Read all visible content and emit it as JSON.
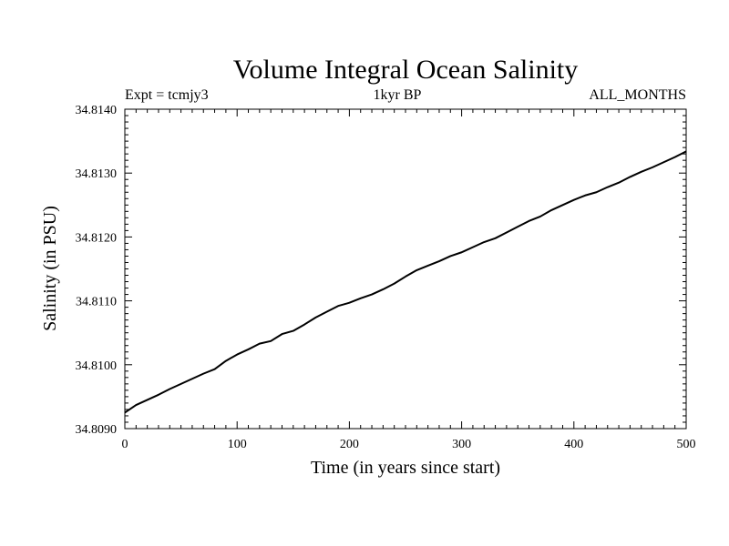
{
  "chart_data": {
    "type": "line",
    "title": "Volume Integral Ocean Salinity",
    "subtitle_left": "Expt = tcmjy3",
    "subtitle_center": "1kyr BP",
    "subtitle_right": "ALL_MONTHS",
    "xlabel": "Time (in years since start)",
    "ylabel": "Salinity (in PSU)",
    "xlim": [
      0,
      500
    ],
    "ylim": [
      34.809,
      34.814
    ],
    "xticks": [
      0,
      100,
      200,
      300,
      400,
      500
    ],
    "xtick_labels": [
      "0",
      "100",
      "200",
      "300",
      "400",
      "500"
    ],
    "yticks": [
      34.809,
      34.81,
      34.811,
      34.812,
      34.813,
      34.814
    ],
    "ytick_labels": [
      "34.8090",
      "34.8100",
      "34.8110",
      "34.8120",
      "34.8130",
      "34.8140"
    ],
    "grid": false,
    "series": [
      {
        "color": "#000000",
        "x": [
          0,
          10,
          20,
          30,
          40,
          50,
          60,
          70,
          80,
          90,
          100,
          110,
          120,
          130,
          140,
          150,
          160,
          170,
          180,
          190,
          200,
          210,
          220,
          230,
          240,
          250,
          260,
          270,
          280,
          290,
          300,
          310,
          320,
          330,
          340,
          350,
          360,
          370,
          380,
          390,
          400,
          410,
          420,
          430,
          440,
          450,
          460,
          470,
          480,
          490,
          500
        ],
        "y": [
          34.80925,
          34.80937,
          34.80945,
          34.80953,
          34.80962,
          34.8097,
          34.80978,
          34.80986,
          34.80993,
          34.81006,
          34.81016,
          34.81024,
          34.81033,
          34.81037,
          34.81048,
          34.81053,
          34.81063,
          34.81074,
          34.81083,
          34.81092,
          34.81097,
          34.81104,
          34.8111,
          34.81118,
          34.81127,
          34.81138,
          34.81148,
          34.81155,
          34.81162,
          34.8117,
          34.81176,
          34.81184,
          34.81192,
          34.81198,
          34.81207,
          34.81216,
          34.81225,
          34.81232,
          34.81242,
          34.8125,
          34.81258,
          34.81265,
          34.8127,
          34.81278,
          34.81285,
          34.81294,
          34.81302,
          34.81309,
          34.81317,
          34.81325,
          34.81334
        ]
      }
    ]
  }
}
